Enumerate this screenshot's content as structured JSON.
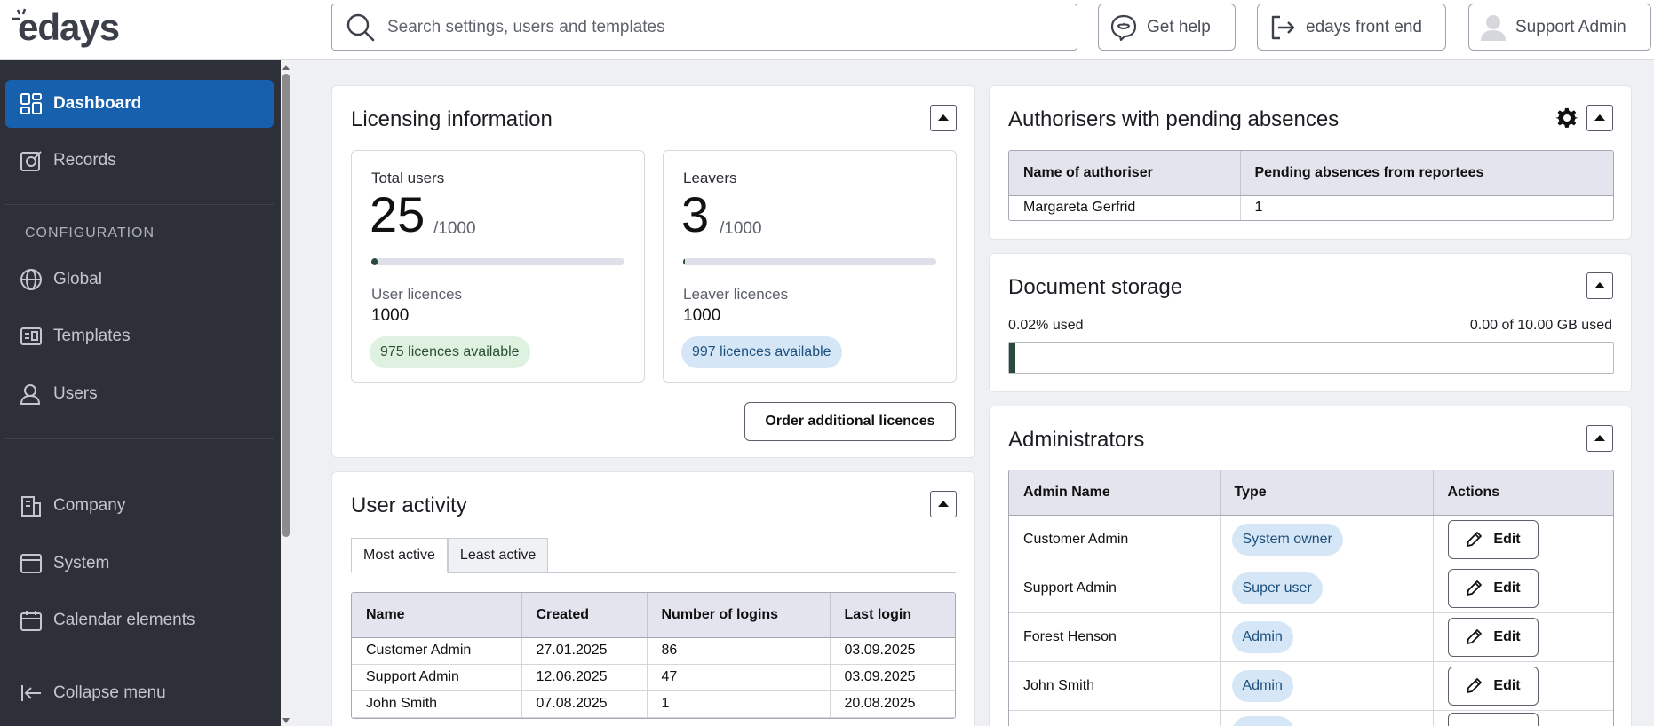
{
  "header": {
    "logo_text": "edays",
    "search": {
      "placeholder": "Search settings, users and templates",
      "value": ""
    },
    "help_label": "Get help",
    "front_end_label": "edays front end",
    "user_label": "Support Admin"
  },
  "sidebar": {
    "items": [
      {
        "label": "Dashboard",
        "icon": "dashboard-icon",
        "active": true
      },
      {
        "label": "Records",
        "icon": "records-icon"
      },
      {
        "label": "Global",
        "icon": "globe-icon"
      },
      {
        "label": "Templates",
        "icon": "templates-icon"
      },
      {
        "label": "Users",
        "icon": "users-icon"
      },
      {
        "label": "Company",
        "icon": "building-icon"
      },
      {
        "label": "System",
        "icon": "window-icon"
      },
      {
        "label": "Calendar elements",
        "icon": "calendar-icon"
      },
      {
        "label": "Collapse menu",
        "icon": "collapse-icon"
      }
    ],
    "heading": "CONFIGURATION"
  },
  "licensing": {
    "title": "Licensing information",
    "total_users": {
      "label": "Total users",
      "count": "25",
      "of": "/1000",
      "fraction": 0.025,
      "licence_label": "User licences",
      "licences": "1000",
      "available": "975 licences available"
    },
    "leavers": {
      "label": "Leavers",
      "count": "3",
      "of": "/1000",
      "fraction": 0.003,
      "licence_label": "Leaver licences",
      "licences": "1000",
      "available": "997 licences available"
    },
    "order_button": "Order additional licences"
  },
  "user_activity": {
    "title": "User activity",
    "tabs": [
      "Most active",
      "Least active"
    ],
    "columns": [
      "Name",
      "Created",
      "Number of logins",
      "Last login"
    ],
    "rows": [
      [
        "Customer Admin",
        "27.01.2025",
        "86",
        "03.09.2025"
      ],
      [
        "Support Admin",
        "12.06.2025",
        "47",
        "03.09.2025"
      ],
      [
        "John Smith",
        "07.08.2025",
        "1",
        "20.08.2025"
      ]
    ]
  },
  "authorisers": {
    "title": "Authorisers with pending absences",
    "columns": [
      "Name of authoriser",
      "Pending absences from reportees"
    ],
    "rows": [
      [
        "Margareta Gerfrid",
        "1"
      ]
    ]
  },
  "storage": {
    "title": "Document storage",
    "used_percent_text": "0.02% used",
    "used_of_text": "0.00 of 10.00 GB used",
    "fraction": 0.0002
  },
  "administrators": {
    "title": "Administrators",
    "columns": [
      "Admin Name",
      "Type",
      "Actions"
    ],
    "edit_label": "Edit",
    "rows": [
      {
        "name": "Customer Admin",
        "type": "System owner"
      },
      {
        "name": "Support Admin",
        "type": "Super user"
      },
      {
        "name": "Forest Henson",
        "type": "Admin"
      },
      {
        "name": "John Smith",
        "type": "Admin"
      }
    ]
  },
  "colors": {
    "accent": "#1760ad",
    "sidebar": "#2d3039",
    "progress": "#2c4a3c"
  }
}
